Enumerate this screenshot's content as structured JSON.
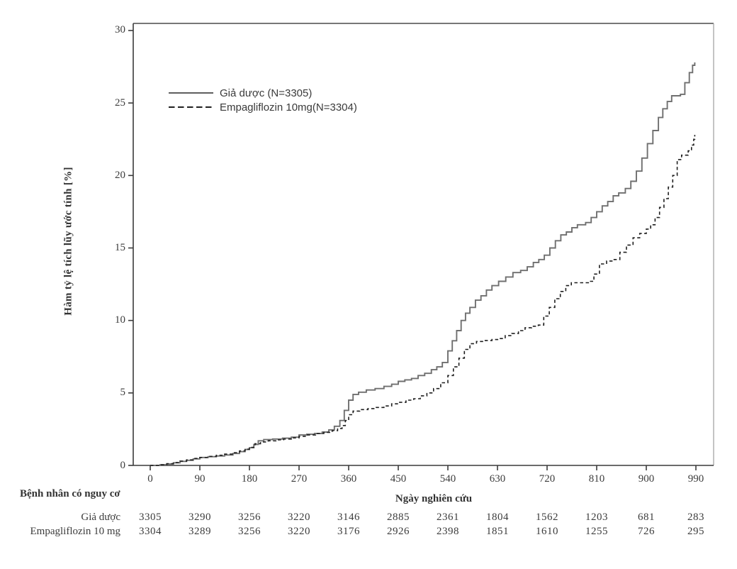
{
  "chart_data": {
    "type": "line",
    "subtype": "kaplan-meier-step",
    "xlabel": "Ngày nghiên cứu",
    "ylabel": "Hàm tỷ lệ tích lũy ước tính [%]",
    "xlim": [
      0,
      1020
    ],
    "ylim": [
      0,
      30
    ],
    "grid": false,
    "legend_position": "inside-top-left",
    "x_ticks": [
      0,
      90,
      180,
      270,
      360,
      450,
      540,
      630,
      720,
      810,
      900,
      990
    ],
    "y_ticks": [
      0,
      5,
      10,
      15,
      20,
      25,
      30
    ],
    "series": [
      {
        "name": "Giả dược (N=3305)",
        "style": "solid",
        "color": "#6f6f6f",
        "points": [
          [
            0,
            0
          ],
          [
            18,
            0.05
          ],
          [
            30,
            0.1
          ],
          [
            42,
            0.18
          ],
          [
            54,
            0.28
          ],
          [
            66,
            0.35
          ],
          [
            78,
            0.45
          ],
          [
            90,
            0.55
          ],
          [
            105,
            0.6
          ],
          [
            120,
            0.65
          ],
          [
            135,
            0.72
          ],
          [
            150,
            0.82
          ],
          [
            162,
            0.95
          ],
          [
            172,
            1.1
          ],
          [
            180,
            1.22
          ],
          [
            188,
            1.45
          ],
          [
            196,
            1.7
          ],
          [
            206,
            1.78
          ],
          [
            222,
            1.82
          ],
          [
            240,
            1.88
          ],
          [
            256,
            1.95
          ],
          [
            270,
            2.1
          ],
          [
            284,
            2.15
          ],
          [
            298,
            2.2
          ],
          [
            312,
            2.3
          ],
          [
            324,
            2.45
          ],
          [
            334,
            2.7
          ],
          [
            344,
            3.1
          ],
          [
            352,
            3.8
          ],
          [
            360,
            4.5
          ],
          [
            368,
            4.9
          ],
          [
            378,
            5.05
          ],
          [
            392,
            5.2
          ],
          [
            408,
            5.3
          ],
          [
            424,
            5.45
          ],
          [
            438,
            5.6
          ],
          [
            450,
            5.8
          ],
          [
            462,
            5.9
          ],
          [
            474,
            6.0
          ],
          [
            486,
            6.2
          ],
          [
            498,
            6.35
          ],
          [
            510,
            6.6
          ],
          [
            520,
            6.8
          ],
          [
            530,
            7.1
          ],
          [
            540,
            7.9
          ],
          [
            548,
            8.6
          ],
          [
            556,
            9.3
          ],
          [
            564,
            10.0
          ],
          [
            572,
            10.5
          ],
          [
            580,
            10.9
          ],
          [
            590,
            11.4
          ],
          [
            600,
            11.7
          ],
          [
            610,
            12.1
          ],
          [
            620,
            12.4
          ],
          [
            632,
            12.7
          ],
          [
            645,
            13.0
          ],
          [
            658,
            13.3
          ],
          [
            672,
            13.45
          ],
          [
            684,
            13.7
          ],
          [
            695,
            14.0
          ],
          [
            705,
            14.2
          ],
          [
            715,
            14.5
          ],
          [
            725,
            15.0
          ],
          [
            735,
            15.5
          ],
          [
            745,
            15.9
          ],
          [
            755,
            16.1
          ],
          [
            765,
            16.4
          ],
          [
            775,
            16.6
          ],
          [
            790,
            16.75
          ],
          [
            800,
            17.1
          ],
          [
            810,
            17.5
          ],
          [
            820,
            17.9
          ],
          [
            830,
            18.2
          ],
          [
            840,
            18.6
          ],
          [
            850,
            18.8
          ],
          [
            862,
            19.1
          ],
          [
            872,
            19.6
          ],
          [
            882,
            20.3
          ],
          [
            892,
            21.2
          ],
          [
            902,
            22.2
          ],
          [
            912,
            23.1
          ],
          [
            922,
            24.0
          ],
          [
            930,
            24.6
          ],
          [
            938,
            25.1
          ],
          [
            946,
            25.5
          ],
          [
            962,
            25.6
          ],
          [
            970,
            26.4
          ],
          [
            978,
            27.1
          ],
          [
            984,
            27.6
          ],
          [
            988,
            27.8
          ]
        ]
      },
      {
        "name": "Empagliflozin 10mg(N=3304)",
        "style": "dashed",
        "color": "#1f1f1f",
        "points": [
          [
            0,
            0
          ],
          [
            18,
            0.05
          ],
          [
            30,
            0.12
          ],
          [
            42,
            0.2
          ],
          [
            54,
            0.3
          ],
          [
            66,
            0.38
          ],
          [
            78,
            0.48
          ],
          [
            90,
            0.55
          ],
          [
            105,
            0.62
          ],
          [
            120,
            0.7
          ],
          [
            135,
            0.78
          ],
          [
            150,
            0.88
          ],
          [
            162,
            1.0
          ],
          [
            172,
            1.12
          ],
          [
            180,
            1.25
          ],
          [
            190,
            1.5
          ],
          [
            200,
            1.62
          ],
          [
            214,
            1.7
          ],
          [
            228,
            1.76
          ],
          [
            242,
            1.82
          ],
          [
            256,
            1.9
          ],
          [
            270,
            2.0
          ],
          [
            285,
            2.1
          ],
          [
            300,
            2.2
          ],
          [
            315,
            2.28
          ],
          [
            330,
            2.4
          ],
          [
            340,
            2.55
          ],
          [
            348,
            2.75
          ],
          [
            354,
            3.1
          ],
          [
            360,
            3.5
          ],
          [
            368,
            3.75
          ],
          [
            380,
            3.85
          ],
          [
            395,
            3.92
          ],
          [
            410,
            4.0
          ],
          [
            424,
            4.1
          ],
          [
            438,
            4.25
          ],
          [
            450,
            4.35
          ],
          [
            464,
            4.5
          ],
          [
            478,
            4.6
          ],
          [
            490,
            4.8
          ],
          [
            502,
            5.0
          ],
          [
            514,
            5.3
          ],
          [
            527,
            5.7
          ],
          [
            540,
            6.2
          ],
          [
            550,
            6.8
          ],
          [
            560,
            7.4
          ],
          [
            570,
            8.0
          ],
          [
            580,
            8.4
          ],
          [
            592,
            8.55
          ],
          [
            606,
            8.62
          ],
          [
            620,
            8.68
          ],
          [
            632,
            8.75
          ],
          [
            644,
            8.95
          ],
          [
            656,
            9.1
          ],
          [
            668,
            9.3
          ],
          [
            680,
            9.5
          ],
          [
            692,
            9.6
          ],
          [
            704,
            9.68
          ],
          [
            714,
            10.3
          ],
          [
            724,
            10.9
          ],
          [
            734,
            11.5
          ],
          [
            744,
            12.0
          ],
          [
            754,
            12.4
          ],
          [
            764,
            12.6
          ],
          [
            795,
            12.7
          ],
          [
            805,
            13.2
          ],
          [
            815,
            13.9
          ],
          [
            828,
            14.1
          ],
          [
            840,
            14.2
          ],
          [
            852,
            14.7
          ],
          [
            864,
            15.2
          ],
          [
            876,
            15.7
          ],
          [
            888,
            16.0
          ],
          [
            900,
            16.3
          ],
          [
            908,
            16.6
          ],
          [
            916,
            17.1
          ],
          [
            924,
            17.8
          ],
          [
            932,
            18.4
          ],
          [
            940,
            19.2
          ],
          [
            948,
            20.0
          ],
          [
            956,
            21.1
          ],
          [
            964,
            21.4
          ],
          [
            976,
            21.7
          ],
          [
            982,
            22.1
          ],
          [
            986,
            22.5
          ],
          [
            988,
            22.8
          ]
        ]
      }
    ]
  },
  "axes": {
    "y_tick_labels": [
      "30",
      "25",
      "20",
      "15",
      "10",
      "5",
      "0"
    ],
    "x_tick_labels": [
      "0",
      "90",
      "180",
      "270",
      "360",
      "450",
      "540",
      "630",
      "720",
      "810",
      "900",
      "990"
    ],
    "x_axis_title": "Ngày nghiên cứu",
    "y_axis_title": "Hàm tỷ lệ tích lũy ước tính [%]"
  },
  "legend": {
    "items": [
      {
        "label": "Giả dược (N=3305)",
        "style": "solid"
      },
      {
        "label": "Empagliflozin 10mg(N=3304)",
        "style": "dashed"
      }
    ]
  },
  "risk_table": {
    "header": "Bệnh nhân có nguy cơ",
    "rows": [
      {
        "label": "Giả dược",
        "values": [
          "3305",
          "3290",
          "3256",
          "3220",
          "3146",
          "2885",
          "2361",
          "1804",
          "1562",
          "1203",
          "681",
          "283"
        ]
      },
      {
        "label": "Empagliflozin 10 mg",
        "values": [
          "3304",
          "3289",
          "3256",
          "3220",
          "3176",
          "2926",
          "2398",
          "1851",
          "1610",
          "1255",
          "726",
          "295"
        ]
      }
    ]
  },
  "colors": {
    "solid_series": "#6f6f6f",
    "dashed_series": "#1f1f1f",
    "axis": "#3a3a3a",
    "right_border": "#aaaaaa",
    "text": "#3c3c3c"
  }
}
